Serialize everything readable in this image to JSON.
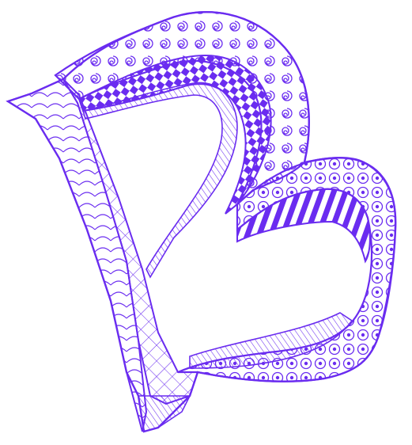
{
  "artwork": {
    "subject": "letter-B",
    "style": "zentangle line art",
    "ink_color": "#6a2cf0",
    "paper_color": "#ffffff",
    "patterns": {
      "outer_band_upper": "spirals",
      "inner_band_upper": "checkerboard-diagonal",
      "outer_band_lower": "circles-with-dots",
      "inner_band_lower": "diagonal-stripes",
      "spine_left": "curved-lines",
      "spine_right": "diamond-lattice"
    }
  }
}
